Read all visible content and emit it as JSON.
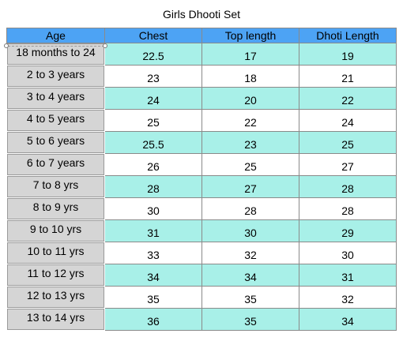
{
  "title": "Girls Dhooti Set",
  "headers": [
    "Age",
    "Chest",
    "Top length",
    "Dhoti Length"
  ],
  "rows": [
    [
      "18 months to 24",
      "22.5",
      "17",
      "19"
    ],
    [
      "2 to 3 years",
      "23",
      "18",
      "21"
    ],
    [
      "3 to 4 years",
      "24",
      "20",
      "22"
    ],
    [
      "4 to 5 years",
      "25",
      "22",
      "24"
    ],
    [
      "5 to 6 years",
      "25.5",
      "23",
      "25"
    ],
    [
      "6 to 7 years",
      "26",
      "25",
      "27"
    ],
    [
      "7 to 8 yrs",
      "28",
      "27",
      "28"
    ],
    [
      "8 to 9 yrs",
      "30",
      "28",
      "28"
    ],
    [
      "9 to 10 yrs",
      "31",
      "30",
      "29"
    ],
    [
      "10 to 11 yrs",
      "33",
      "32",
      "30"
    ],
    [
      "11 to 12 yrs",
      "34",
      "34",
      "31"
    ],
    [
      "12 to 13 yrs",
      "35",
      "35",
      "32"
    ],
    [
      "13 to 14 yrs",
      "36",
      "35",
      "34"
    ]
  ],
  "colors": {
    "header": "#4da3f4",
    "stripe": "#a8f0e8",
    "age_cell": "#d5d5d5"
  }
}
